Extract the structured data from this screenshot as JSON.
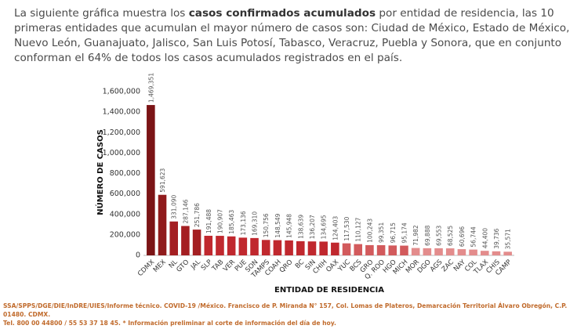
{
  "intro": {
    "before": "La siguiente gráfica muestra los ",
    "emphasis": "casos confirmados acumulados",
    "after": " por entidad de residencia, las 10 primeras entidades que acumulan el mayor número de casos son: Ciudad de México, Estado de México, Nuevo León, Guanajuato, Jalisco, San Luis Potosí, Tabasco, Veracruz, Puebla y Sonora, que en conjunto conforman el 64% de todos los casos acumulados registrados en el país."
  },
  "chart_data": {
    "type": "bar",
    "x_label": "ENTIDAD DE RESIDENCIA",
    "y_label": "NÚMERO DE CASOS",
    "categories": [
      "CDMX",
      "MEX",
      "NL",
      "GTO",
      "JAL",
      "SLP",
      "TAB",
      "VER",
      "PUE",
      "SON",
      "TAMPS",
      "COAH",
      "QRO",
      "BC",
      "SIN",
      "CHIH",
      "OAX",
      "YUC",
      "BCS",
      "GRO",
      "Q. ROO",
      "HGO",
      "MICH",
      "MOR",
      "DGO",
      "AGS",
      "ZAC",
      "NAY",
      "COL",
      "TLAX",
      "CHIS",
      "CAMP"
    ],
    "values": [
      1469351,
      591623,
      331090,
      287146,
      251786,
      191488,
      190907,
      185463,
      173136,
      169310,
      150756,
      148549,
      145948,
      138639,
      136207,
      134695,
      124403,
      117530,
      110127,
      100243,
      99351,
      96715,
      95174,
      71982,
      69888,
      69553,
      68525,
      60696,
      56744,
      44400,
      39736,
      35571
    ],
    "value_labels": [
      "1,469,351",
      "591,623",
      "331,090",
      "287,146",
      "251,786",
      "191,488",
      "190,907",
      "185,463",
      "173,136",
      "169,310",
      "150,756",
      "148,549",
      "145,948",
      "138,639",
      "136,207",
      "134,695",
      "124,403",
      "117,530",
      "110,127",
      "100,243",
      "99,351",
      "96,715",
      "95,174",
      "71,982",
      "69,888",
      "69,553",
      "68,525",
      "60,696",
      "56,744",
      "44,400",
      "39,736",
      "35,571"
    ],
    "colors": [
      "#7b1416",
      "#901b1c",
      "#a41f22",
      "#a41f22",
      "#a41f22",
      "#c0282e",
      "#c0282e",
      "#c0282e",
      "#c0282e",
      "#c0282e",
      "#c0282e",
      "#c0282e",
      "#c0282e",
      "#c0282e",
      "#c0282e",
      "#c0282e",
      "#c0282e",
      "#d25a5c",
      "#d25a5c",
      "#d25a5c",
      "#d25a5c",
      "#d25a5c",
      "#d25a5c",
      "#e38c8c",
      "#e38c8c",
      "#e38c8c",
      "#e38c8c",
      "#e38c8c",
      "#e38c8c",
      "#e38c8c",
      "#e38c8c",
      "#e38c8c"
    ],
    "ylim": [
      0,
      1600000
    ],
    "yticks": [
      {
        "value": 0,
        "label": "0"
      },
      {
        "value": 200000,
        "label": "200,000"
      },
      {
        "value": 400000,
        "label": "400,000"
      },
      {
        "value": 600000,
        "label": "600,000"
      },
      {
        "value": 800000,
        "label": "800,000"
      },
      {
        "value": 1000000,
        "label": "1,000,000"
      },
      {
        "value": 1200000,
        "label": "1,200,000"
      },
      {
        "value": 1400000,
        "label": "1,400,000"
      },
      {
        "value": 1600000,
        "label": "1,600,000"
      }
    ],
    "grid": false
  },
  "footer": [
    "SSA/SPPS/DGE/DIE/InDRE/UIES/Informe técnico. COVID-19 /México. Francisco de P. Miranda N° 157, Col. Lomas de Plateros, Demarcación Territorial Álvaro Obregón, C.P. 01480. CDMX.",
    "Tel. 800 00 44800 / 55 53 37 18 45. * Información preliminar al corte de información del día de hoy."
  ]
}
